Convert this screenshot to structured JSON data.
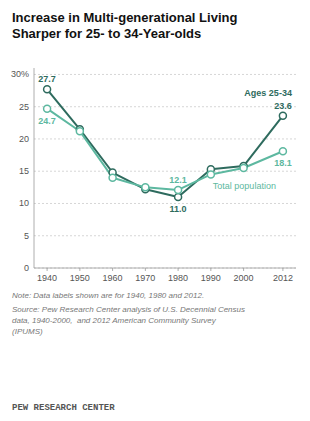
{
  "chart_data": {
    "type": "line",
    "title": "Increase in Multi-generational Living\nSharper for 25- to 34-Year-olds",
    "x": [
      1940,
      1950,
      1960,
      1970,
      1980,
      1990,
      2000,
      2012
    ],
    "series": [
      {
        "name": "Ages 25-34",
        "color": "#2e6b5e",
        "values": [
          27.7,
          21.5,
          14.8,
          12.2,
          11.0,
          15.3,
          15.8,
          23.6
        ],
        "value_labels": [
          "27.7",
          null,
          null,
          null,
          "11.0",
          null,
          null,
          "23.6"
        ]
      },
      {
        "name": "Total population",
        "color": "#5db8a0",
        "values": [
          24.7,
          21.2,
          14.0,
          12.5,
          12.1,
          14.5,
          15.5,
          18.1
        ],
        "value_labels": [
          "24.7",
          null,
          null,
          null,
          "12.1",
          null,
          null,
          "18.1"
        ]
      }
    ],
    "xlim": [
      1936,
      2016
    ],
    "xticks": [
      1940,
      1950,
      1960,
      1970,
      1980,
      1990,
      2000,
      2012
    ],
    "ylim": [
      0,
      31
    ],
    "yticks": [
      0,
      5,
      10,
      15,
      20,
      25,
      {
        "value": 30,
        "label": "30%"
      }
    ],
    "grid": true,
    "marker": "circle",
    "annotations": [
      "Note: Data labels shown are for 1940, 1980 and 2012.",
      "Source: Pew Research Center analysis of U.S. Decennial Census\ndata, 1940-2000,  and 2012 American Community Survey\n(IPUMS)",
      "PEW RESEARCH CENTER"
    ]
  }
}
